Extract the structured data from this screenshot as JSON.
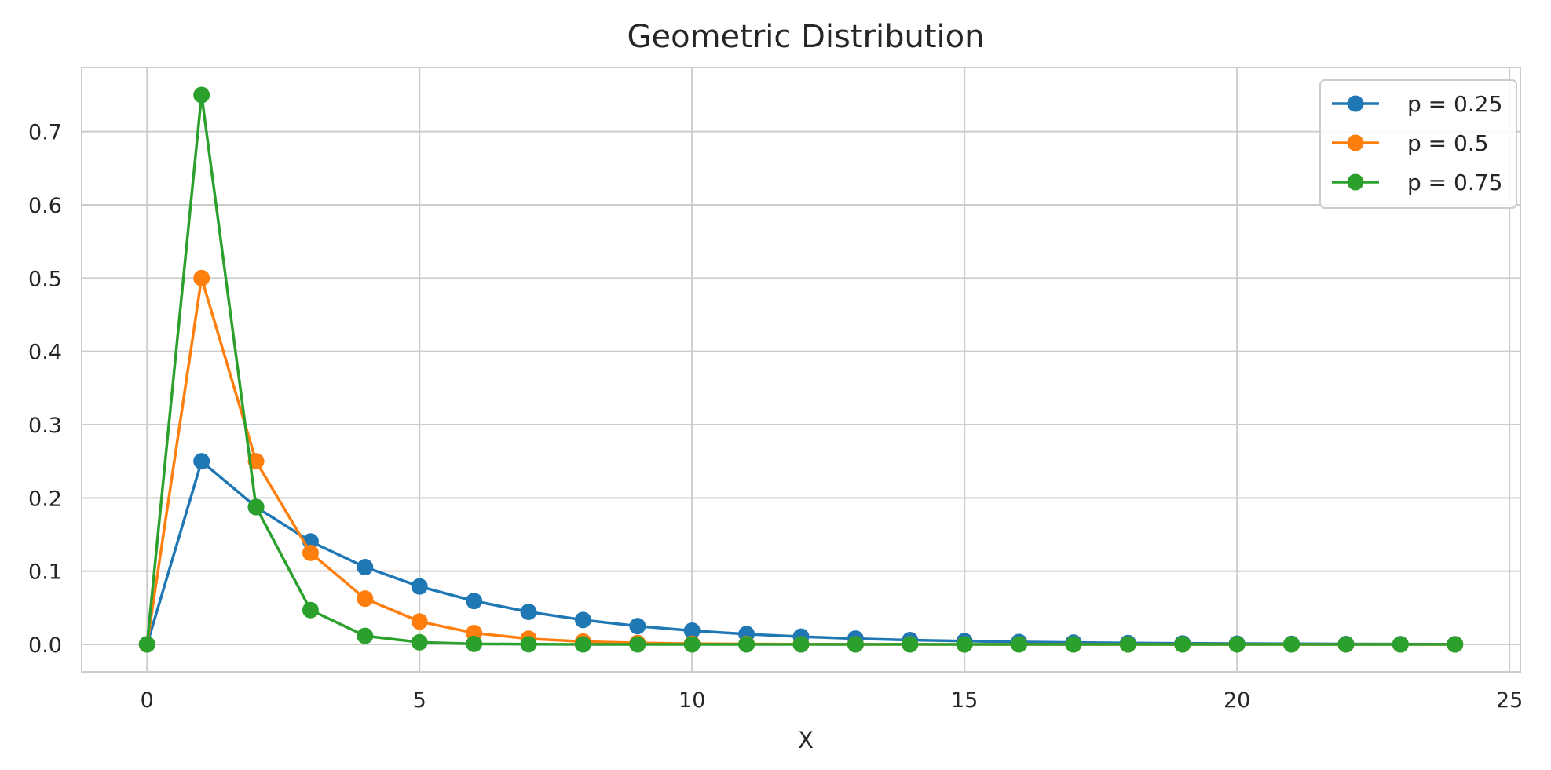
{
  "chart_data": {
    "type": "line",
    "title": "Geometric Distribution",
    "xlabel": "X",
    "ylabel": "",
    "xlim": [
      -1.2,
      25.2
    ],
    "ylim": [
      -0.0375,
      0.7875
    ],
    "x_ticks": [
      0,
      5,
      10,
      15,
      20,
      25
    ],
    "x_tick_labels": [
      "0",
      "5",
      "10",
      "15",
      "20",
      "25"
    ],
    "y_ticks": [
      0.0,
      0.1,
      0.2,
      0.3,
      0.4,
      0.5,
      0.6,
      0.7
    ],
    "y_tick_labels": [
      "0.0",
      "0.1",
      "0.2",
      "0.3",
      "0.4",
      "0.5",
      "0.6",
      "0.7"
    ],
    "grid": true,
    "legend_position": "top-right",
    "marker": "circle",
    "x": [
      0,
      1,
      2,
      3,
      4,
      5,
      6,
      7,
      8,
      9,
      10,
      11,
      12,
      13,
      14,
      15,
      16,
      17,
      18,
      19,
      20,
      21,
      22,
      23,
      24
    ],
    "series": [
      {
        "name": "p = 0.25",
        "color": "#1f77b4",
        "values": [
          0,
          0.25,
          0.1875,
          0.1406,
          0.1055,
          0.0791,
          0.0593,
          0.0445,
          0.0334,
          0.025,
          0.0188,
          0.0141,
          0.0106,
          0.0079,
          0.0059,
          0.0045,
          0.0033,
          0.0025,
          0.0019,
          0.0014,
          0.0011,
          0.0008,
          0.0006,
          0.0004,
          0.0003
        ]
      },
      {
        "name": "p = 0.5",
        "color": "#ff7f0e",
        "values": [
          0,
          0.5,
          0.25,
          0.125,
          0.0625,
          0.0313,
          0.0156,
          0.0078,
          0.0039,
          0.002,
          0.001,
          0.0005,
          0.0002,
          0.0001,
          0.0001,
          0.0,
          0.0,
          0.0,
          0.0,
          0.0,
          0.0,
          0.0,
          0.0,
          0.0,
          0.0
        ]
      },
      {
        "name": "p = 0.75",
        "color": "#2ca02c",
        "values": [
          0,
          0.75,
          0.1875,
          0.0469,
          0.0117,
          0.0029,
          0.0007,
          0.0002,
          0.0,
          0.0,
          0.0,
          0.0,
          0.0,
          0.0,
          0.0,
          0.0,
          0.0,
          0.0,
          0.0,
          0.0,
          0.0,
          0.0,
          0.0,
          0.0,
          0.0
        ]
      }
    ]
  }
}
